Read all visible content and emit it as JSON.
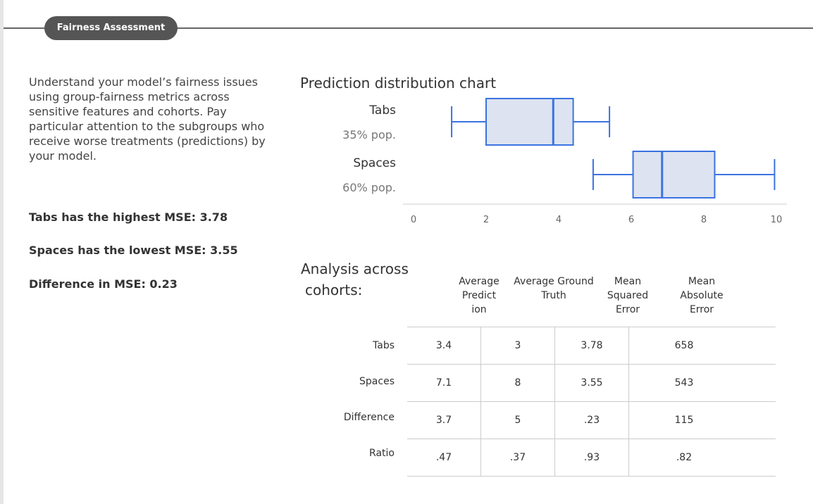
{
  "header": {
    "section_title": "Fairness Assessment"
  },
  "intro": {
    "text": "Understand your model’s fairness issues using group-fairness metrics across sensitive features and cohorts. Pay particular attention to the subgroups who receive worse treatments (predictions) by your model."
  },
  "stats": {
    "highest": "Tabs has the highest MSE: 3.78",
    "lowest": "Spaces has the lowest MSE: 3.55",
    "difference": "Difference in MSE: 0.23"
  },
  "chart": {
    "title": "Prediction distribution chart",
    "categories": [
      {
        "name": "Tabs",
        "population": "35% pop."
      },
      {
        "name": "Spaces",
        "population": "60% pop."
      }
    ]
  },
  "chart_data": {
    "type": "box",
    "title": "Prediction distribution chart",
    "categories": [
      "Tabs",
      "Spaces"
    ],
    "series": [
      {
        "category": "Tabs",
        "min": 1.05,
        "q1": 2.0,
        "median": 3.85,
        "q3": 4.4,
        "max": 5.4
      },
      {
        "category": "Spaces",
        "min": 4.95,
        "q1": 6.05,
        "median": 6.85,
        "q3": 8.3,
        "max": 9.95
      }
    ],
    "xlim": [
      0,
      10
    ],
    "xticks": [
      "0",
      "2",
      "4",
      "6",
      "8",
      "10"
    ],
    "color": "#3b73e0",
    "fill": "#dde3f0",
    "grid": false
  },
  "analysis": {
    "title_line1": "Analysis across",
    "title_line2": "cohorts:",
    "columns": [
      "Average\nPredict\nion",
      "Average Ground\nTruth",
      "Mean\nSquared\nError",
      "Mean\nAbsolute\nError"
    ],
    "rows": [
      {
        "label": "Tabs",
        "values": [
          "3.4",
          "3",
          "3.78",
          "658"
        ]
      },
      {
        "label": "Spaces",
        "values": [
          "7.1",
          "8",
          "3.55",
          "543"
        ]
      },
      {
        "label": "Difference",
        "values": [
          "3.7",
          "5",
          ".23",
          "115"
        ]
      },
      {
        "label": "Ratio",
        "values": [
          ".47",
          ".37",
          ".93",
          ".82"
        ]
      }
    ]
  }
}
